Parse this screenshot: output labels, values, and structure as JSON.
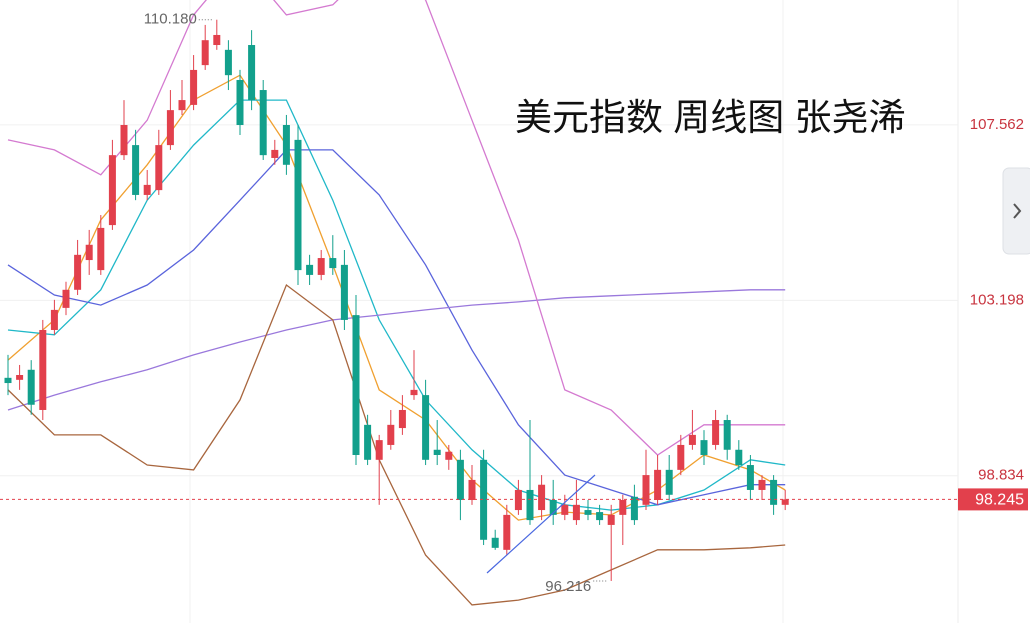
{
  "chart_data": {
    "type": "candlestick",
    "title": "美元指数 周线图 张尧浠",
    "ylim": [
      95.17,
      110.67
    ],
    "yticks": [
      98.834,
      103.198,
      107.562
    ],
    "up_color": "#e2404c",
    "down_color": "#12a08c",
    "grid": true,
    "open": [
      101.27,
      101.22,
      101.47,
      100.47,
      102.46,
      103.01,
      103.46,
      104.2,
      103.95,
      105.07,
      106.81,
      107.06,
      105.82,
      105.94,
      107.06,
      107.93,
      108.06,
      109.05,
      109.55,
      109.43,
      108.68,
      109.55,
      108.43,
      106.74,
      107.56,
      107.19,
      104.08,
      103.83,
      104.25,
      104.08,
      102.83,
      100.1,
      99.23,
      99.6,
      100.02,
      100.84,
      100.84,
      99.48,
      99.23,
      99.23,
      98.23,
      99.23,
      97.29,
      96.99,
      97.98,
      98.48,
      97.98,
      98.23,
      97.86,
      97.73,
      97.98,
      97.93,
      97.61,
      97.86,
      98.31,
      98.11,
      98.23,
      98.98,
      98.98,
      99.6,
      99.72,
      99.6,
      100.22,
      99.48,
      99.1,
      98.48,
      98.73,
      98.11
    ],
    "high": [
      101.84,
      101.59,
      101.71,
      102.71,
      103.21,
      103.66,
      104.7,
      104.95,
      105.32,
      107.19,
      108.18,
      107.44,
      106.44,
      107.44,
      108.43,
      108.68,
      109.3,
      110.05,
      110.18,
      109.67,
      108.93,
      109.92,
      108.68,
      107.19,
      107.81,
      107.56,
      104.33,
      104.45,
      104.82,
      104.45,
      103.33,
      100.35,
      99.85,
      100.47,
      100.84,
      101.96,
      101.22,
      100.22,
      99.6,
      99.48,
      99.1,
      99.48,
      97.49,
      98.11,
      98.73,
      100.22,
      98.85,
      98.73,
      98.36,
      98.73,
      98.23,
      98.11,
      98.11,
      98.36,
      98.61,
      99.48,
      99.35,
      99.35,
      99.85,
      100.47,
      99.97,
      100.47,
      100.35,
      99.72,
      99.35,
      98.85,
      98.85,
      98.48
    ],
    "low": [
      100.84,
      100.97,
      100.35,
      100.22,
      102.34,
      102.83,
      103.33,
      103.83,
      103.83,
      104.95,
      106.69,
      105.69,
      105.69,
      105.82,
      106.94,
      107.81,
      107.93,
      108.93,
      109.43,
      108.43,
      107.31,
      107.93,
      106.69,
      106.57,
      106.32,
      103.58,
      103.58,
      103.7,
      103.83,
      102.46,
      99.1,
      99.1,
      98.11,
      99.48,
      99.85,
      100.72,
      99.1,
      99.1,
      98.98,
      97.73,
      98.11,
      97.11,
      96.99,
      96.86,
      97.86,
      97.61,
      97.73,
      97.61,
      97.73,
      97.61,
      97.73,
      97.61,
      96.216,
      97.11,
      97.61,
      97.98,
      98.11,
      98.23,
      98.85,
      99.48,
      99.1,
      99.48,
      99.23,
      98.98,
      98.23,
      98.23,
      97.86,
      97.98
    ],
    "close": [
      101.14,
      101.34,
      100.6,
      102.46,
      102.96,
      103.46,
      104.33,
      104.58,
      105.0,
      106.81,
      107.56,
      105.82,
      106.07,
      107.06,
      107.93,
      108.18,
      108.93,
      109.67,
      109.8,
      108.8,
      107.56,
      108.18,
      106.81,
      106.94,
      106.57,
      103.95,
      103.83,
      104.25,
      104.0,
      102.71,
      99.35,
      99.23,
      99.72,
      100.1,
      100.47,
      100.97,
      99.23,
      99.35,
      99.43,
      98.23,
      98.73,
      97.24,
      97.04,
      97.86,
      98.48,
      97.73,
      98.61,
      97.86,
      98.11,
      98.11,
      97.86,
      97.73,
      97.86,
      98.23,
      97.73,
      98.85,
      98.98,
      98.36,
      99.6,
      99.85,
      99.35,
      100.22,
      99.48,
      99.1,
      98.48,
      98.73,
      98.11,
      98.245
    ],
    "series": [
      {
        "color": "#f0a030",
        "x": [
          0,
          4,
          8,
          12,
          16,
          20,
          24,
          28,
          32,
          36,
          40,
          44,
          48,
          52,
          56,
          60,
          64,
          67
        ],
        "values": [
          101.71,
          102.71,
          105.2,
          106.57,
          108.18,
          108.8,
          107.06,
          104.08,
          100.97,
          100.22,
          98.73,
          97.73,
          97.93,
          97.86,
          98.48,
          99.35,
          98.98,
          98.48
        ]
      },
      {
        "color": "#20b8c8",
        "x": [
          0,
          4,
          8,
          12,
          16,
          20,
          24,
          28,
          32,
          36,
          40,
          44,
          48,
          52,
          56,
          60,
          64,
          67
        ],
        "values": [
          102.46,
          102.34,
          103.46,
          105.69,
          107.06,
          108.18,
          108.18,
          105.69,
          102.71,
          100.72,
          99.48,
          98.48,
          98.11,
          97.98,
          98.11,
          98.48,
          99.23,
          99.1
        ]
      },
      {
        "color": "#5a64dc",
        "x": [
          0,
          4,
          8,
          12,
          16,
          20,
          24,
          28,
          32,
          36,
          40,
          44,
          48,
          52,
          56,
          60,
          64,
          67
        ],
        "values": [
          104.08,
          103.33,
          103.08,
          103.58,
          104.45,
          105.69,
          106.94,
          106.94,
          105.82,
          104.08,
          101.96,
          100.1,
          98.85,
          98.48,
          98.11,
          98.36,
          98.61,
          98.61
        ]
      },
      {
        "color": "#9a78dc",
        "x": [
          0,
          4,
          8,
          12,
          16,
          20,
          24,
          28,
          32,
          36,
          40,
          44,
          48,
          52,
          56,
          60,
          64,
          67
        ],
        "values": [
          100.47,
          100.84,
          101.17,
          101.47,
          101.84,
          102.16,
          102.46,
          102.71,
          102.83,
          102.96,
          103.08,
          103.16,
          103.26,
          103.31,
          103.36,
          103.41,
          103.46,
          103.46
        ]
      },
      {
        "color": "#d47ad0",
        "x": [
          0,
          4,
          8,
          12,
          16,
          20,
          24,
          28,
          32,
          36,
          40,
          44,
          48,
          52,
          56,
          60,
          64,
          67
        ],
        "values": [
          107.19,
          106.94,
          106.32,
          107.68,
          110.3,
          111.67,
          110.3,
          110.55,
          111.67,
          110.67,
          107.68,
          104.7,
          100.97,
          100.47,
          99.35,
          100.1,
          100.1,
          100.1
        ]
      },
      {
        "color": "#a8663e",
        "x": [
          0,
          4,
          8,
          12,
          16,
          20,
          24,
          28,
          32,
          36,
          40,
          44,
          48,
          52,
          56,
          60,
          64,
          67
        ],
        "values": [
          100.97,
          99.85,
          99.85,
          99.1,
          98.98,
          100.72,
          103.58,
          102.71,
          99.23,
          96.86,
          95.62,
          95.74,
          95.99,
          96.49,
          96.99,
          96.99,
          97.04,
          97.11
        ]
      }
    ],
    "high_mark": {
      "value": 110.18,
      "label": "110.180"
    },
    "low_mark": {
      "value": 96.216,
      "label": "96.216"
    },
    "last_price": 98.245
  }
}
